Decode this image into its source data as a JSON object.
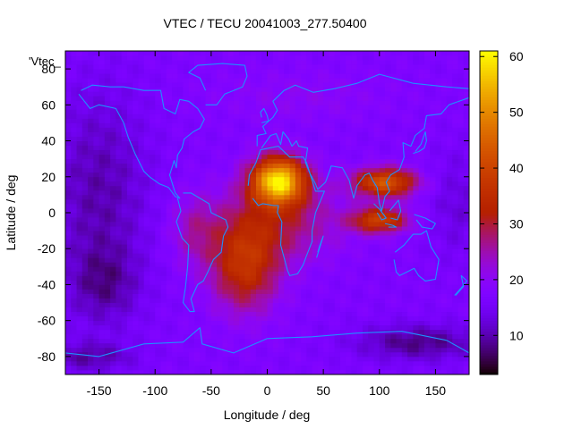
{
  "chart_data": {
    "type": "heatmap",
    "title": "VTEC / TECU 20041003_277.50400",
    "xlabel": "Longitude / deg",
    "ylabel": "Latitude / deg",
    "series_label": "'Vtec_",
    "xlim": [
      -180,
      180
    ],
    "ylim": [
      -90,
      90
    ],
    "xticks": [
      -150,
      -100,
      -50,
      0,
      50,
      100,
      150
    ],
    "yticks": [
      -80,
      -60,
      -40,
      -20,
      0,
      20,
      40,
      60,
      80
    ],
    "colorbar": {
      "range": [
        3,
        61
      ],
      "ticks": [
        10,
        20,
        30,
        40,
        50,
        60
      ],
      "colormap": "gnuplot-pm3d-rainbow-black-purple-red-yellow"
    },
    "features": [
      {
        "name": "peak",
        "lon": 10,
        "lat": 18,
        "vtec": 60
      },
      {
        "name": "secondary-peak-asia",
        "lon": 105,
        "lat": 17,
        "vtec": 45
      },
      {
        "name": "secondary-peak-indonesia",
        "lon": 100,
        "lat": -4,
        "vtec": 41
      },
      {
        "name": "south-atlantic-band",
        "lon": -20,
        "lat": -30,
        "vtec": 36
      },
      {
        "name": "night-trough",
        "lon": -150,
        "lat": 0,
        "vtec": 12
      }
    ],
    "overlay": "coastlines"
  },
  "colors": {
    "coastline": "#1e90ff",
    "axis": "#000000",
    "background": "#ffffff"
  }
}
